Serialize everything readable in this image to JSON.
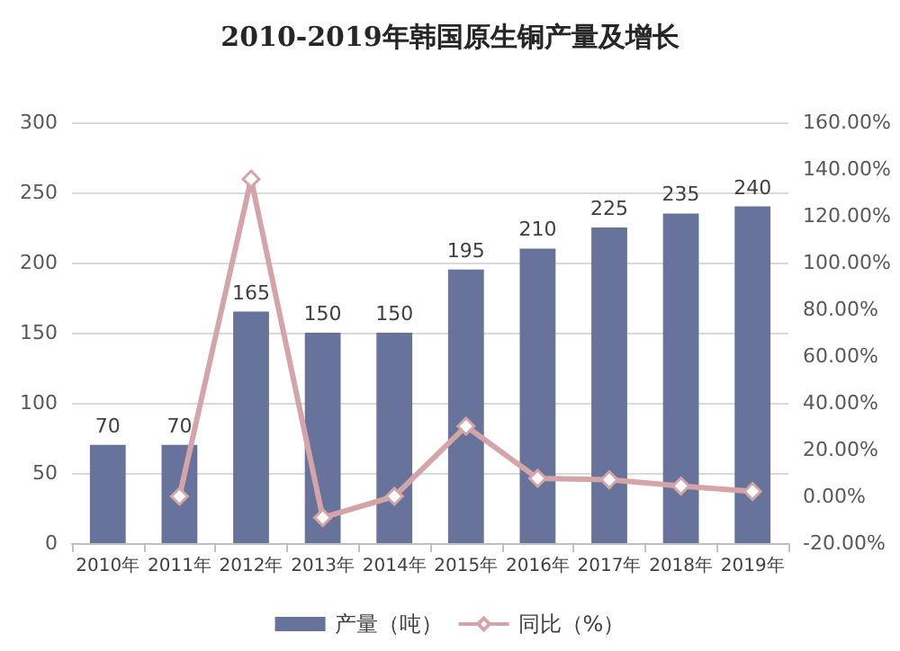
{
  "chart_data": {
    "type": "bar",
    "title": "2010-2019年韩国原生铜产量及增长",
    "categories": [
      "2010年",
      "2011年",
      "2012年",
      "2013年",
      "2014年",
      "2015年",
      "2016年",
      "2017年",
      "2018年",
      "2019年"
    ],
    "series": [
      {
        "name": "产量（吨）",
        "color": "#67739b",
        "values": [
          70,
          70,
          165,
          150,
          150,
          195,
          210,
          225,
          235,
          240
        ],
        "value_labels": [
          "70",
          "70",
          "165",
          "150",
          "150",
          "195",
          "210",
          "225",
          "235",
          "240"
        ]
      },
      {
        "name": "同比（%）",
        "type": "line",
        "axis": "y2",
        "color": "#d4a5a8",
        "marker": "diamond",
        "values": [
          null,
          0,
          135.7,
          -9.1,
          0,
          30,
          7.7,
          7.1,
          4.4,
          2.1
        ]
      }
    ],
    "ylim": [
      0,
      300
    ],
    "yticks": [
      0,
      50,
      100,
      150,
      200,
      250,
      300
    ],
    "y2lim": [
      -20,
      160
    ],
    "y2ticks": [
      {
        "value": -20,
        "label": "-20.00%"
      },
      {
        "value": 0,
        "label": "0.00%"
      },
      {
        "value": 20,
        "label": "20.00%"
      },
      {
        "value": 40,
        "label": "40.00%"
      },
      {
        "value": 60,
        "label": "60.00%"
      },
      {
        "value": 80,
        "label": "80.00%"
      },
      {
        "value": 100,
        "label": "100.00%"
      },
      {
        "value": 120,
        "label": "120.00%"
      },
      {
        "value": 140,
        "label": "140.00%"
      },
      {
        "value": 160,
        "label": "160.00%"
      }
    ],
    "grid": "y",
    "legend": "bottom"
  }
}
